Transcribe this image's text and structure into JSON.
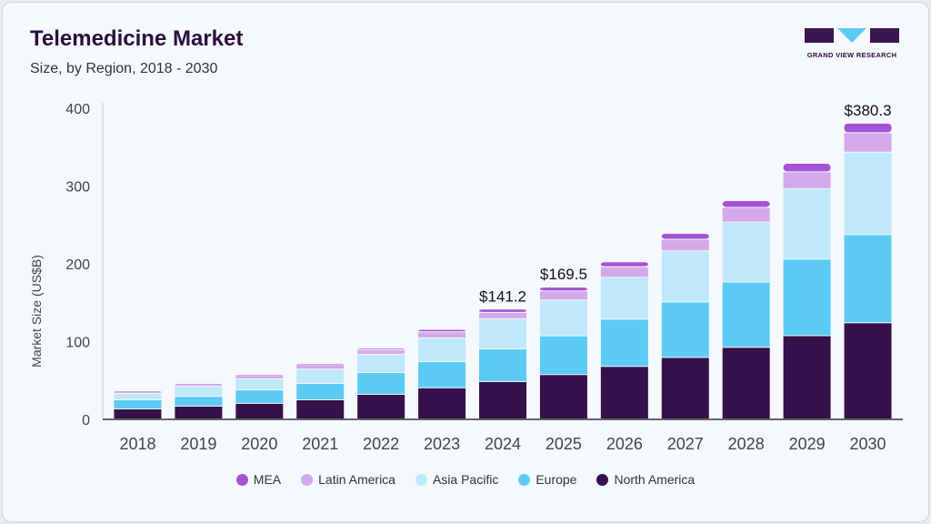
{
  "header": {
    "title": "Telemedicine Market",
    "subtitle": "Size, by Region, 2018 - 2030",
    "logo_text": "GRAND VIEW RESEARCH"
  },
  "chart_data": {
    "type": "bar",
    "stacked": true,
    "ylabel": "Market Size (US$B)",
    "xlabel": "",
    "ylim": [
      0,
      400
    ],
    "yticks": [
      "0",
      "100",
      "200",
      "300",
      "400"
    ],
    "grid": false,
    "legend_position": "bottom",
    "categories": [
      "2018",
      "2019",
      "2020",
      "2021",
      "2022",
      "2023",
      "2024",
      "2025",
      "2026",
      "2027",
      "2028",
      "2029",
      "2030"
    ],
    "series": [
      {
        "name": "North America",
        "color": "#36104a",
        "values": [
          12.9,
          16.4,
          20,
          24.6,
          31.6,
          40,
          48,
          57,
          67.5,
          79,
          92,
          107,
          123.6
        ]
      },
      {
        "name": "Europe",
        "color": "#5bcbf5",
        "values": [
          11.7,
          12.6,
          17.4,
          21,
          28,
          33.7,
          42,
          49.8,
          60.8,
          71.5,
          84,
          98.5,
          113.4
        ]
      },
      {
        "name": "Asia Pacific",
        "color": "#bfe9fa",
        "values": [
          8.1,
          13,
          14.1,
          18.4,
          23.4,
          30.3,
          38.7,
          46,
          53.7,
          65.5,
          77,
          90.5,
          106
        ]
      },
      {
        "name": "Latin America",
        "color": "#d4a9ea",
        "values": [
          2.3,
          2.4,
          4.5,
          6,
          6,
          8,
          8.3,
          11.7,
          13.7,
          15,
          19,
          21.7,
          25
        ]
      },
      {
        "name": "MEA",
        "color": "#a552d6",
        "values": [
          1,
          1.2,
          1,
          1,
          2,
          3,
          4.2,
          5,
          6.3,
          7.6,
          8.7,
          10.9,
          12.3
        ]
      }
    ],
    "data_labels": {
      "2024": "$141.2",
      "2025": "$169.5",
      "2030": "$380.3"
    }
  },
  "legend": [
    "MEA",
    "Latin America",
    "Asia Pacific",
    "Europe",
    "North America"
  ]
}
